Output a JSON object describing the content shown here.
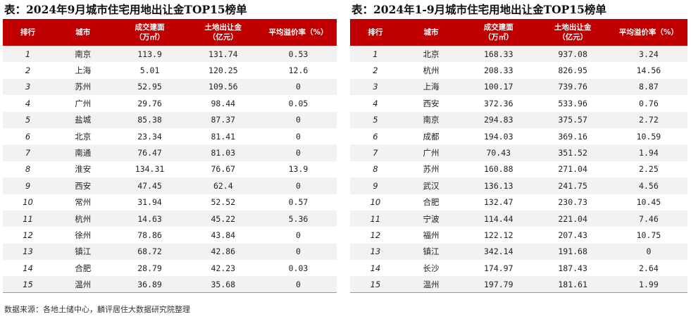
{
  "left_table": {
    "title": "表：2024年9月城市住宅用地出让金TOP15榜单",
    "headers": {
      "rank": "排行",
      "city": "城市",
      "area_line1": "成交建面",
      "area_line2": "（万㎡）",
      "fee_line1": "土地出让金",
      "fee_line2": "（亿元）",
      "premium": "平均溢价率（%）"
    },
    "rows": [
      {
        "rank": "1",
        "city": "南京",
        "area": "113.9",
        "fee": "131.74",
        "premium": "0.53"
      },
      {
        "rank": "2",
        "city": "上海",
        "area": "5.01",
        "fee": "120.25",
        "premium": "12.6"
      },
      {
        "rank": "3",
        "city": "苏州",
        "area": "52.95",
        "fee": "109.56",
        "premium": "0"
      },
      {
        "rank": "4",
        "city": "广州",
        "area": "29.76",
        "fee": "98.44",
        "premium": "0.05"
      },
      {
        "rank": "5",
        "city": "盐城",
        "area": "85.38",
        "fee": "87.37",
        "premium": "0"
      },
      {
        "rank": "6",
        "city": "北京",
        "area": "23.34",
        "fee": "81.41",
        "premium": "0"
      },
      {
        "rank": "7",
        "city": "南通",
        "area": "76.47",
        "fee": "81.03",
        "premium": "0"
      },
      {
        "rank": "8",
        "city": "淮安",
        "area": "134.31",
        "fee": "76.67",
        "premium": "13.9"
      },
      {
        "rank": "9",
        "city": "西安",
        "area": "47.45",
        "fee": "62.4",
        "premium": "0"
      },
      {
        "rank": "10",
        "city": "常州",
        "area": "31.94",
        "fee": "52.52",
        "premium": "0.57"
      },
      {
        "rank": "11",
        "city": "杭州",
        "area": "14.63",
        "fee": "45.22",
        "premium": "5.36"
      },
      {
        "rank": "12",
        "city": "徐州",
        "area": "78.86",
        "fee": "43.84",
        "premium": "0"
      },
      {
        "rank": "13",
        "city": "镇江",
        "area": "68.72",
        "fee": "42.86",
        "premium": "0"
      },
      {
        "rank": "14",
        "city": "合肥",
        "area": "28.79",
        "fee": "42.23",
        "premium": "0.03"
      },
      {
        "rank": "15",
        "city": "温州",
        "area": "36.89",
        "fee": "35.68",
        "premium": "0"
      }
    ]
  },
  "right_table": {
    "title": "表：2024年1-9月城市住宅用地出让金TOP15榜单",
    "headers": {
      "rank": "排行",
      "city": "城市",
      "area_line1": "成交建面",
      "area_line2": "（万㎡）",
      "fee_line1": "土地出让金",
      "fee_line2": "（亿元）",
      "premium": "平均溢价率（%）"
    },
    "rows": [
      {
        "rank": "1",
        "city": "北京",
        "area": "168.33",
        "fee": "937.08",
        "premium": "3.24"
      },
      {
        "rank": "2",
        "city": "杭州",
        "area": "208.33",
        "fee": "826.95",
        "premium": "14.56"
      },
      {
        "rank": "3",
        "city": "上海",
        "area": "100.17",
        "fee": "739.76",
        "premium": "8.87"
      },
      {
        "rank": "4",
        "city": "西安",
        "area": "372.36",
        "fee": "533.96",
        "premium": "0.76"
      },
      {
        "rank": "5",
        "city": "南京",
        "area": "294.83",
        "fee": "375.57",
        "premium": "2.72"
      },
      {
        "rank": "6",
        "city": "成都",
        "area": "194.03",
        "fee": "369.16",
        "premium": "10.59"
      },
      {
        "rank": "7",
        "city": "广州",
        "area": "70.43",
        "fee": "351.52",
        "premium": "1.94"
      },
      {
        "rank": "8",
        "city": "苏州",
        "area": "160.88",
        "fee": "271.04",
        "premium": "2.25"
      },
      {
        "rank": "9",
        "city": "武汉",
        "area": "136.13",
        "fee": "241.75",
        "premium": "4.56"
      },
      {
        "rank": "10",
        "city": "合肥",
        "area": "132.47",
        "fee": "230.73",
        "premium": "10.45"
      },
      {
        "rank": "11",
        "city": "宁波",
        "area": "114.44",
        "fee": "221.04",
        "premium": "7.46"
      },
      {
        "rank": "12",
        "city": "福州",
        "area": "122.12",
        "fee": "207.43",
        "premium": "10.75"
      },
      {
        "rank": "13",
        "city": "镇江",
        "area": "342.14",
        "fee": "191.68",
        "premium": "0"
      },
      {
        "rank": "14",
        "city": "长沙",
        "area": "174.97",
        "fee": "187.43",
        "premium": "2.64"
      },
      {
        "rank": "15",
        "city": "温州",
        "area": "197.79",
        "fee": "181.61",
        "premium": "1.99"
      }
    ]
  },
  "source": "数据来源：各地土储中心，麟评居住大数据研究院整理",
  "colors": {
    "header_bg": "#c00000",
    "header_text": "#ffffff",
    "stripe": "#f2f2f2"
  }
}
